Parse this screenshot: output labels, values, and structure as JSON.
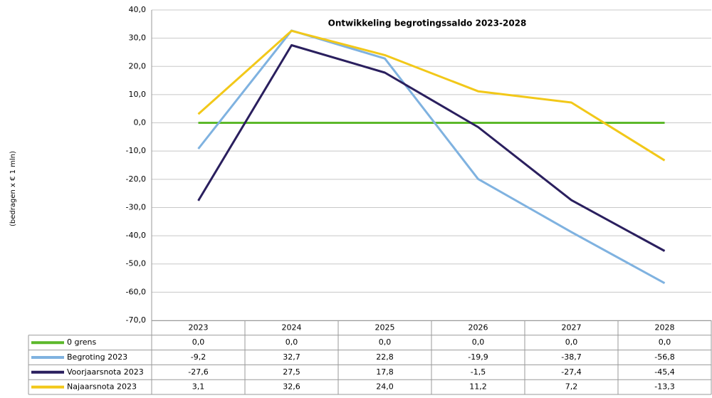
{
  "chart_data": {
    "type": "line",
    "title": "Ontwikkeling begrotingssaldo 2023-2028",
    "y_label": "(bedragen x € 1 mln)",
    "categories": [
      "2023",
      "2024",
      "2025",
      "2026",
      "2027",
      "2028"
    ],
    "ylim": [
      -70,
      40
    ],
    "yticks": [
      {
        "value": -70,
        "label": "-70,0"
      },
      {
        "value": -60,
        "label": "-60,0"
      },
      {
        "value": -50,
        "label": "-50,0"
      },
      {
        "value": -40,
        "label": "-40,0"
      },
      {
        "value": -30,
        "label": "-30,0"
      },
      {
        "value": -20,
        "label": "-20,0"
      },
      {
        "value": -10,
        "label": "-10,0"
      },
      {
        "value": 0,
        "label": "0,0"
      },
      {
        "value": 10,
        "label": "10,0"
      },
      {
        "value": 20,
        "label": "20,0"
      },
      {
        "value": 30,
        "label": "30,0"
      },
      {
        "value": 40,
        "label": "40,0"
      }
    ],
    "grid": true,
    "series": [
      {
        "name": "0 grens",
        "color": "#5cb82a",
        "values": [
          0,
          0,
          0,
          0,
          0,
          0
        ],
        "value_labels": [
          "0,0",
          "0,0",
          "0,0",
          "0,0",
          "0,0",
          "0,0"
        ]
      },
      {
        "name": "Begroting 2023",
        "color": "#7fb2e0",
        "values": [
          -9.2,
          32.7,
          22.8,
          -19.9,
          -38.7,
          -56.8
        ],
        "value_labels": [
          "-9,2",
          "32,7",
          "22,8",
          "-19,9",
          "-38,7",
          "-56,8"
        ]
      },
      {
        "name": "Voorjaarsnota 2023",
        "color": "#2a1f5e",
        "values": [
          -27.6,
          27.5,
          17.8,
          -1.5,
          -27.4,
          -45.4
        ],
        "value_labels": [
          "-27,6",
          "27,5",
          "17,8",
          "-1,5",
          "-27,4",
          "-45,4"
        ]
      },
      {
        "name": "Najaarsnota 2023",
        "color": "#f2c819",
        "values": [
          3.1,
          32.6,
          24.0,
          11.2,
          7.2,
          -13.3
        ],
        "value_labels": [
          "3,1",
          "32,6",
          "24,0",
          "11,2",
          "7,2",
          "-13,3"
        ]
      }
    ]
  }
}
